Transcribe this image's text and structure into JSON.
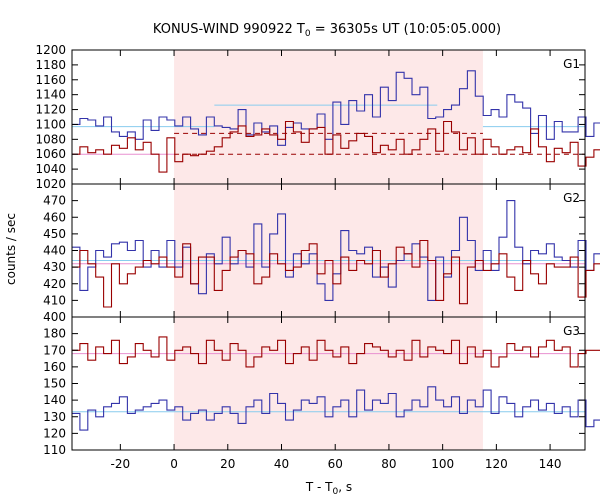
{
  "chart_data": {
    "type": "line",
    "title": {
      "prefix": "KONUS-WIND 990922 T",
      "sub": "0",
      "suffix": " = 36305s UT (10:05:05.000)"
    },
    "xlabel": {
      "prefix": "T - T",
      "sub": "0",
      "suffix": ", s"
    },
    "ylabel": "counts / sec",
    "xlim": [
      -38,
      153
    ],
    "xticks": [
      -20,
      0,
      20,
      40,
      60,
      80,
      100,
      120,
      140
    ],
    "grid": false,
    "shaded_interval": {
      "x": [
        0,
        115
      ],
      "color": "#fde8e8"
    },
    "colors": {
      "blue": "#3333aa",
      "red": "#990000",
      "blue_bg": "#88ccee",
      "red_bg": "#e890d0"
    },
    "panels": [
      {
        "name": "G1",
        "ylim": [
          1020,
          1200
        ],
        "yticks": [
          1020,
          1040,
          1060,
          1080,
          1100,
          1120,
          1140,
          1160,
          1180,
          1200
        ],
        "series": [
          {
            "color": "blue",
            "x0": -38,
            "step": 2.944,
            "values": [
              1100,
              1108,
              1106,
              1098,
              1110,
              1090,
              1084,
              1090,
              1080,
              1106,
              1092,
              1110,
              1106,
              1098,
              1110,
              1094,
              1086,
              1110,
              1098,
              1096,
              1094,
              1120,
              1086,
              1102,
              1090,
              1098,
              1072,
              1096,
              1102,
              1094,
              1094,
              1114,
              1080,
              1130,
              1100,
              1132,
              1118,
              1140,
              1110,
              1150,
              1132,
              1170,
              1162,
              1140,
              1150,
              1108,
              1110,
              1120,
              1126,
              1148,
              1172,
              1138,
              1112,
              1120,
              1110,
              1140,
              1130,
              1122,
              1088,
              1112,
              1080,
              1104,
              1090,
              1090,
              1110,
              1084,
              1102,
              1094,
              1078,
              1134,
              1130,
              1094,
              1134,
              1100,
              1130,
              1102
            ]
          },
          {
            "color": "red",
            "x0": -38,
            "step": 2.944,
            "values": [
              1060,
              1070,
              1062,
              1066,
              1060,
              1072,
              1068,
              1082,
              1066,
              1076,
              1060,
              1036,
              1082,
              1050,
              1060,
              1058,
              1060,
              1064,
              1070,
              1082,
              1090,
              1098,
              1084,
              1086,
              1094,
              1086,
              1080,
              1104,
              1090,
              1076,
              1094,
              1096,
              1060,
              1086,
              1068,
              1078,
              1088,
              1084,
              1062,
              1072,
              1066,
              1080,
              1060,
              1066,
              1080,
              1094,
              1064,
              1104,
              1090,
              1066,
              1082,
              1060,
              1080,
              1070,
              1060,
              1066,
              1070,
              1062,
              1094,
              1070,
              1050,
              1068,
              1062,
              1076,
              1044,
              1056,
              1066,
              1070,
              1070,
              1062,
              1052,
              1064,
              1054,
              1066,
              1058,
              1072
            ]
          }
        ],
        "background": [
          {
            "color": "blue_bg",
            "x": [
              -38,
              15
            ],
            "y": 1097,
            "dash": false
          },
          {
            "color": "blue_bg",
            "x": [
              15,
              98
            ],
            "y": 1126,
            "dash": false
          },
          {
            "color": "blue_bg",
            "x": [
              115,
              153
            ],
            "y": 1097,
            "dash": false
          },
          {
            "color": "red_bg",
            "x": [
              -38,
              0
            ],
            "y": 1060,
            "dash": false
          },
          {
            "color": "red",
            "x": [
              0,
              115
            ],
            "y": 1088,
            "dash": true
          },
          {
            "color": "red",
            "x": [
              0,
              115
            ],
            "y": 1060,
            "dash": true
          },
          {
            "color": "red",
            "x": [
              115,
              153
            ],
            "y": 1060,
            "dash": true
          }
        ]
      },
      {
        "name": "G2",
        "ylim": [
          400,
          480
        ],
        "yticks": [
          400,
          410,
          420,
          430,
          440,
          450,
          460,
          470
        ],
        "series": [
          {
            "color": "blue",
            "x0": -38,
            "step": 2.944,
            "values": [
              442,
              416,
              430,
              440,
              436,
              444,
              445,
              440,
              446,
              430,
              440,
              430,
              446,
              430,
              442,
              420,
              414,
              438,
              432,
              448,
              432,
              440,
              430,
              456,
              430,
              450,
              462,
              424,
              438,
              432,
              438,
              420,
              410,
              426,
              452,
              440,
              438,
              442,
              424,
              430,
              418,
              434,
              438,
              444,
              436,
              410,
              436,
              424,
              440,
              460,
              446,
              428,
              440,
              428,
              448,
              470,
              442,
              432,
              440,
              438,
              444,
              436,
              434,
              430,
              446,
              428,
              438,
              440,
              430,
              444,
              428,
              418,
              440,
              438,
              454,
              424
            ]
          },
          {
            "color": "red",
            "x0": -38,
            "step": 2.944,
            "values": [
              430,
              440,
              432,
              424,
              406,
              432,
              420,
              426,
              430,
              434,
              432,
              436,
              430,
              424,
              444,
              420,
              436,
              436,
              416,
              428,
              436,
              440,
              438,
              420,
              424,
              438,
              432,
              428,
              430,
              440,
              444,
              426,
              434,
              420,
              436,
              428,
              434,
              432,
              440,
              424,
              432,
              442,
              438,
              430,
              446,
              434,
              410,
              426,
              436,
              408,
              430,
              434,
              428,
              432,
              438,
              424,
              416,
              434,
              426,
              420,
              432,
              430,
              430,
              436,
              412,
              428,
              432,
              434,
              428,
              430,
              436,
              432,
              426,
              432,
              434,
              430
            ]
          }
        ],
        "background": [
          {
            "color": "blue_bg",
            "x": [
              -38,
              153
            ],
            "y": 434,
            "dash": false
          },
          {
            "color": "red_bg",
            "x": [
              -38,
              153
            ],
            "y": 432,
            "dash": false
          }
        ]
      },
      {
        "name": "G3",
        "ylim": [
          110,
          190
        ],
        "yticks": [
          110,
          120,
          130,
          140,
          150,
          160,
          170,
          180
        ],
        "series": [
          {
            "color": "blue",
            "x0": -38,
            "step": 2.944,
            "values": [
              132,
              122,
              134,
              130,
              136,
              138,
              142,
              132,
              134,
              136,
              138,
              140,
              134,
              136,
              128,
              132,
              134,
              128,
              132,
              136,
              132,
              126,
              136,
              140,
              132,
              144,
              138,
              128,
              134,
              140,
              138,
              142,
              130,
              136,
              140,
              130,
              146,
              134,
              140,
              138,
              144,
              130,
              134,
              140,
              136,
              148,
              140,
              136,
              142,
              132,
              140,
              136,
              146,
              132,
              142,
              138,
              130,
              136,
              140,
              134,
              138,
              132,
              136,
              130,
              140,
              124,
              128,
              132,
              134,
              136,
              134,
              138,
              130,
              136,
              132,
              128
            ]
          },
          {
            "color": "red",
            "x0": -38,
            "step": 2.944,
            "values": [
              170,
              174,
              164,
              172,
              168,
              176,
              162,
              166,
              174,
              170,
              166,
              178,
              164,
              170,
              172,
              168,
              162,
              176,
              170,
              164,
              174,
              170,
              160,
              166,
              172,
              170,
              176,
              162,
              168,
              172,
              164,
              176,
              170,
              166,
              172,
              162,
              168,
              174,
              172,
              170,
              166,
              170,
              164,
              176,
              166,
              172,
              170,
              168,
              176,
              162,
              172,
              166,
              170,
              160,
              166,
              174,
              170,
              172,
              166,
              172,
              176,
              170,
              172,
              160,
              168,
              170,
              170,
              172,
              168,
              164,
              174,
              168,
              176,
              168,
              172,
              156
            ]
          }
        ],
        "background": [
          {
            "color": "blue_bg",
            "x": [
              -38,
              153
            ],
            "y": 133,
            "dash": false
          },
          {
            "color": "red_bg",
            "x": [
              -38,
              153
            ],
            "y": 168,
            "dash": false
          }
        ]
      }
    ]
  }
}
